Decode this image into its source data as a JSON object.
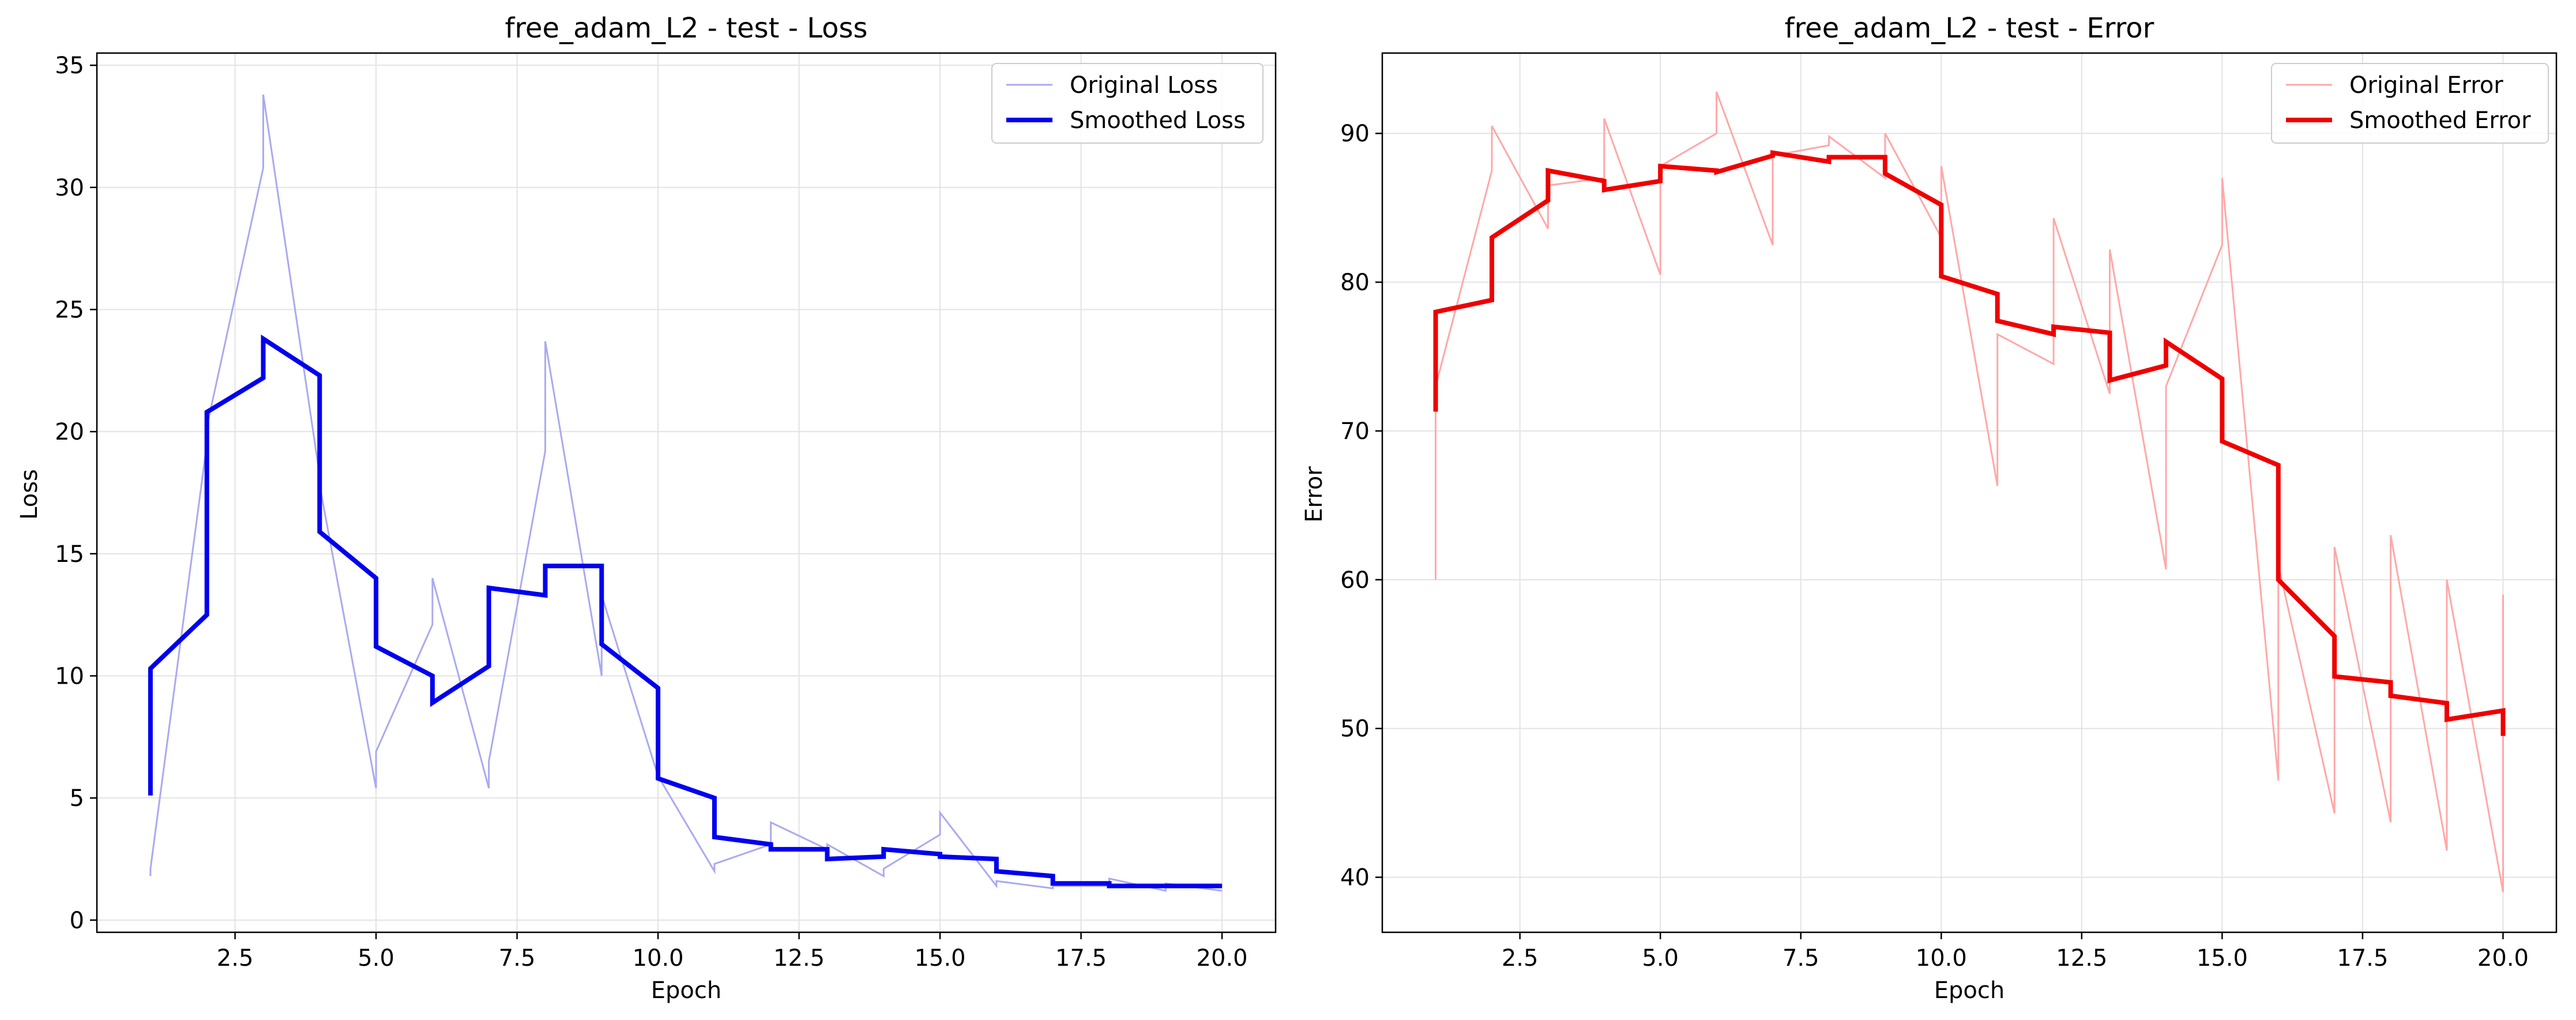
{
  "chart_data": [
    {
      "type": "line",
      "title": "free_adam_L2 - test - Loss",
      "xlabel": "Epoch",
      "ylabel": "Loss",
      "xlim": [
        0.05,
        20.95
      ],
      "ylim": [
        -0.5,
        35.5
      ],
      "xticks": [
        2.5,
        5.0,
        7.5,
        10.0,
        12.5,
        15.0,
        17.5,
        20.0
      ],
      "xtick_labels": [
        "2.5",
        "5.0",
        "7.5",
        "10.0",
        "12.5",
        "15.0",
        "17.5",
        "20.0"
      ],
      "yticks": [
        0,
        5,
        10,
        15,
        20,
        25,
        30,
        35
      ],
      "ytick_labels": [
        "0",
        "5",
        "10",
        "15",
        "20",
        "25",
        "30",
        "35"
      ],
      "grid": true,
      "legend_position": "top-right",
      "series": [
        {
          "name": "Original Loss",
          "color": "#aaaaf0",
          "style": "thin",
          "x": [
            1,
            1,
            2,
            2,
            3,
            3,
            4,
            4,
            5,
            5,
            6,
            6,
            7,
            7,
            8,
            8,
            9,
            9,
            10,
            10,
            11,
            11,
            12,
            12,
            13,
            13,
            14,
            14,
            15,
            15,
            16,
            16,
            17,
            17,
            18,
            18,
            19,
            19,
            20,
            20
          ],
          "y": [
            1.8,
            2.1,
            19.5,
            20.2,
            30.8,
            33.8,
            18.2,
            17.8,
            5.4,
            6.9,
            12.1,
            14.0,
            5.4,
            6.5,
            19.2,
            23.7,
            10.0,
            13.3,
            5.9,
            5.9,
            2.0,
            2.3,
            3.1,
            4.0,
            2.9,
            3.1,
            1.8,
            2.1,
            3.5,
            4.4,
            1.4,
            1.6,
            1.3,
            1.4,
            1.4,
            1.7,
            1.2,
            1.5,
            1.2,
            1.2
          ]
        },
        {
          "name": "Smoothed Loss",
          "color": "#0000ee",
          "style": "thick",
          "x": [
            1,
            1,
            2,
            2,
            3,
            3,
            4,
            4,
            5,
            5,
            6,
            6,
            7,
            7,
            8,
            8,
            9,
            9,
            10,
            10,
            11,
            11,
            12,
            12,
            13,
            13,
            14,
            14,
            15,
            15,
            16,
            16,
            17,
            17,
            18,
            18,
            19,
            19,
            20,
            20
          ],
          "y": [
            5.1,
            10.3,
            12.5,
            20.8,
            22.2,
            23.8,
            22.3,
            15.9,
            14.0,
            11.2,
            10.0,
            8.9,
            10.4,
            13.6,
            13.3,
            14.5,
            14.5,
            11.3,
            9.5,
            5.8,
            5.0,
            3.4,
            3.1,
            2.9,
            2.9,
            2.5,
            2.6,
            2.9,
            2.7,
            2.6,
            2.5,
            2.0,
            1.8,
            1.5,
            1.5,
            1.4,
            1.4,
            1.4,
            1.4,
            1.4
          ]
        }
      ]
    },
    {
      "type": "line",
      "title": "free_adam_L2 - test - Error",
      "xlabel": "Epoch",
      "ylabel": "Error",
      "xlim": [
        0.05,
        20.95
      ],
      "ylim": [
        36.3,
        95.4
      ],
      "xticks": [
        2.5,
        5.0,
        7.5,
        10.0,
        12.5,
        15.0,
        17.5,
        20.0
      ],
      "xtick_labels": [
        "2.5",
        "5.0",
        "7.5",
        "10.0",
        "12.5",
        "15.0",
        "17.5",
        "20.0"
      ],
      "yticks": [
        40,
        50,
        60,
        70,
        80,
        90
      ],
      "ytick_labels": [
        "40",
        "50",
        "60",
        "70",
        "80",
        "90"
      ],
      "grid": true,
      "legend_position": "top-right",
      "series": [
        {
          "name": "Original Error",
          "color": "#ffa8a8",
          "style": "thin",
          "x": [
            1,
            1,
            2,
            2,
            3,
            3,
            4,
            4,
            5,
            5,
            6,
            6,
            7,
            7,
            8,
            8,
            9,
            9,
            10,
            10,
            11,
            11,
            12,
            12,
            13,
            13,
            14,
            14,
            15,
            15,
            16,
            16,
            17,
            17,
            18,
            18,
            19,
            19,
            20,
            20
          ],
          "y": [
            60.0,
            73.0,
            87.5,
            90.5,
            83.6,
            86.5,
            87.0,
            91.0,
            80.5,
            87.8,
            90.0,
            92.8,
            82.5,
            88.5,
            89.2,
            89.8,
            87.0,
            90.0,
            83.0,
            87.8,
            66.3,
            76.5,
            74.5,
            84.3,
            72.5,
            82.2,
            60.7,
            73.0,
            82.5,
            87.0,
            46.5,
            61.0,
            44.3,
            62.2,
            43.7,
            63.0,
            41.8,
            60.0,
            39.0,
            59.0
          ]
        },
        {
          "name": "Smoothed Error",
          "color": "#ee0000",
          "style": "thick",
          "x": [
            1,
            1,
            2,
            2,
            3,
            3,
            4,
            4,
            5,
            5,
            6,
            6,
            7,
            7,
            8,
            8,
            9,
            9,
            10,
            10,
            11,
            11,
            12,
            12,
            13,
            13,
            14,
            14,
            15,
            15,
            16,
            16,
            17,
            17,
            18,
            18,
            19,
            19,
            20,
            20
          ],
          "y": [
            71.3,
            78.0,
            78.8,
            83.0,
            85.5,
            87.5,
            86.8,
            86.2,
            86.8,
            87.8,
            87.5,
            87.4,
            88.5,
            88.7,
            88.1,
            88.4,
            88.4,
            87.3,
            85.2,
            80.4,
            79.2,
            77.4,
            76.5,
            77.0,
            76.6,
            73.4,
            74.4,
            76.0,
            73.5,
            69.3,
            67.7,
            60.0,
            56.2,
            53.5,
            53.1,
            52.2,
            51.7,
            50.6,
            51.2,
            49.5
          ]
        }
      ]
    }
  ]
}
